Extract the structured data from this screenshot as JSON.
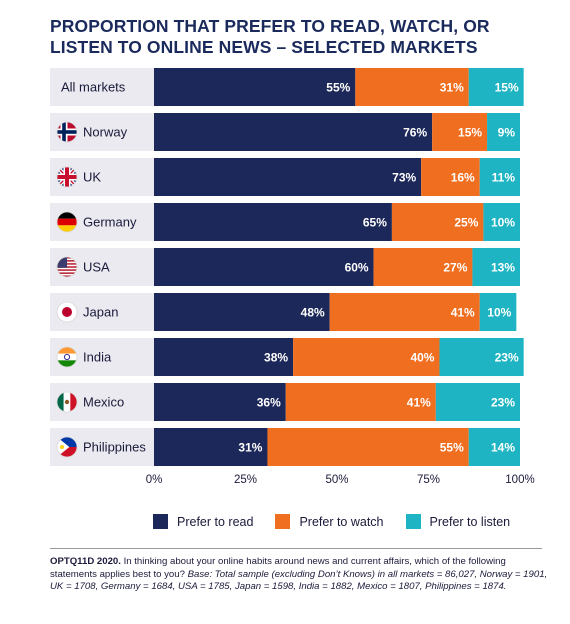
{
  "title": "PROPORTION THAT PREFER TO READ, WATCH, OR LISTEN TO ONLINE NEWS – SELECTED MARKETS",
  "colors": {
    "read": "#1c2859",
    "watch": "#f06e1f",
    "listen": "#1eb4c3",
    "row_bg": "#eaeaf0"
  },
  "legend": [
    {
      "label": "Prefer to read",
      "color": "#1c2859"
    },
    {
      "label": "Prefer to watch",
      "color": "#f06e1f"
    },
    {
      "label": "Prefer to listen",
      "color": "#1eb4c3"
    }
  ],
  "footnote": {
    "code": "OPTQ11D 2020.",
    "question": " In thinking about your online habits around news and current affairs, which of the following statements applies best to you? ",
    "base": "Base: Total sample (excluding Don’t Knows) in all markets = 86,027, Norway = 1901, UK = 1708, Germany = 1684, USA = 1785, Japan = 1598, India = 1882, Mexico = 1807, Philippines = 1874."
  },
  "chart_data": {
    "type": "bar",
    "orientation": "horizontal",
    "stacked": true,
    "categories": [
      "All markets",
      "Norway",
      "UK",
      "Germany",
      "USA",
      "Japan",
      "India",
      "Mexico",
      "Philippines"
    ],
    "flag_icons": [
      "",
      "norway-flag-icon",
      "uk-flag-icon",
      "germany-flag-icon",
      "usa-flag-icon",
      "japan-flag-icon",
      "india-flag-icon",
      "mexico-flag-icon",
      "philippines-flag-icon"
    ],
    "series": [
      {
        "name": "Prefer to read",
        "values": [
          55,
          76,
          73,
          65,
          60,
          48,
          38,
          36,
          31
        ]
      },
      {
        "name": "Prefer to watch",
        "values": [
          31,
          15,
          16,
          25,
          27,
          41,
          40,
          41,
          55
        ]
      },
      {
        "name": "Prefer to listen",
        "values": [
          15,
          9,
          11,
          10,
          13,
          10,
          23,
          23,
          14
        ]
      }
    ],
    "xlim": [
      0,
      100
    ],
    "xticks": [
      "0%",
      "25%",
      "50%",
      "75%",
      "100%"
    ],
    "value_suffix": "%",
    "legend_position": "bottom"
  }
}
